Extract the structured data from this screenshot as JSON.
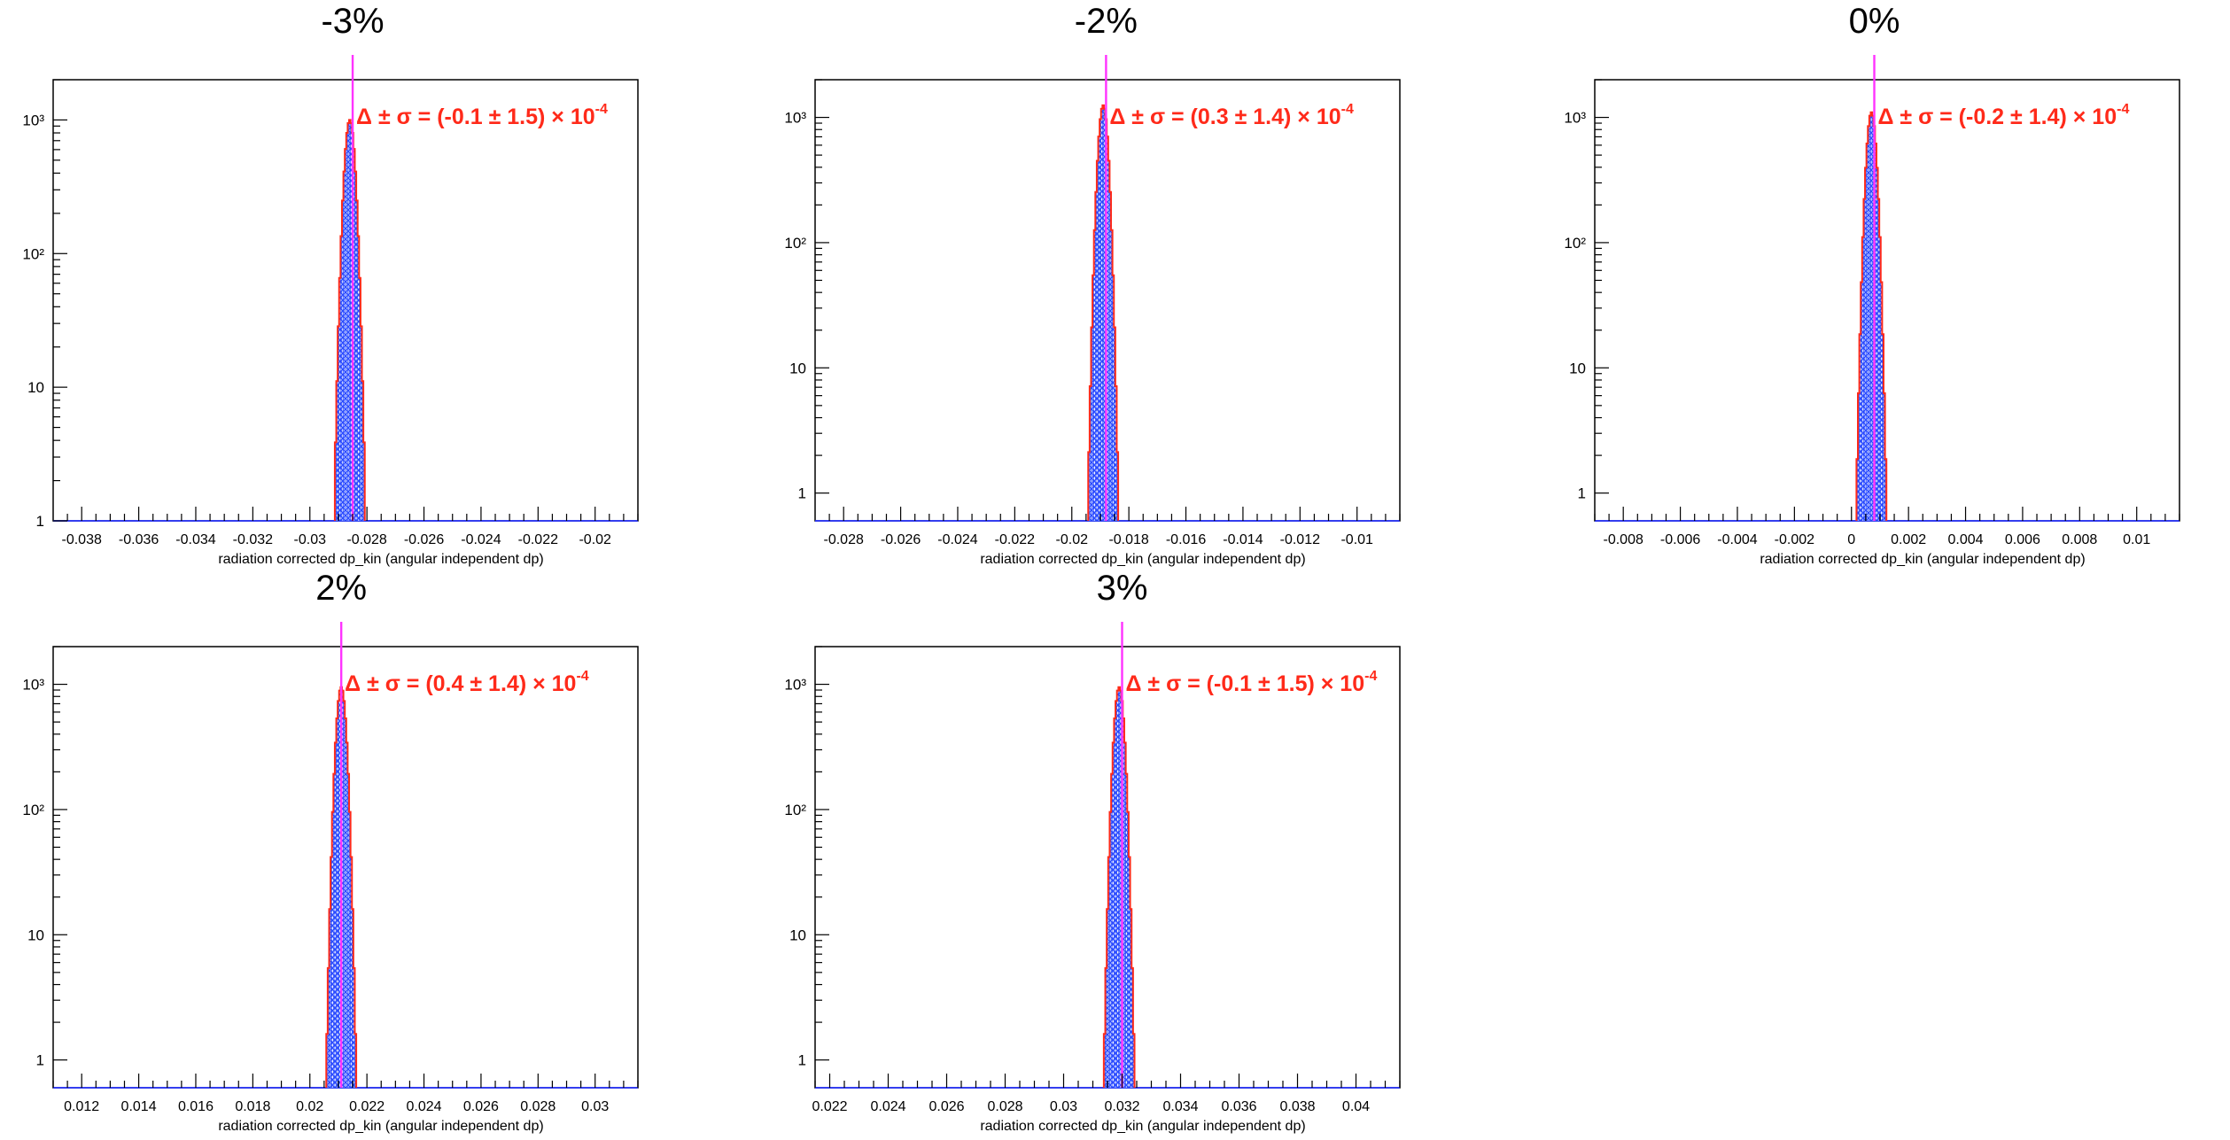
{
  "colors": {
    "frame": "#000000",
    "axis_blue": "#2a34ff",
    "hatch_blue": "#2a4bff",
    "fit_red": "#ff2a1a",
    "marker_magenta": "#ff33ff",
    "annotation_red": "#ff2a1a"
  },
  "chart_data": [
    {
      "type": "histogram",
      "panel_title": "-3%",
      "xlabel": "radiation corrected dp_kin (angular independent dp)",
      "xlim": [
        -0.039,
        -0.0185
      ],
      "ylog": true,
      "ylim": [
        1,
        2000
      ],
      "x_ticks": [
        "-0.038",
        "-0.036",
        "-0.034",
        "-0.032",
        "-0.03",
        "-0.028",
        "-0.026",
        "-0.024",
        "-0.022",
        "-0.02"
      ],
      "x_tick_values": [
        -0.038,
        -0.036,
        -0.034,
        -0.032,
        -0.03,
        -0.028,
        -0.026,
        -0.024,
        -0.022,
        -0.02
      ],
      "y_ticks": [
        "1",
        "10",
        "10²",
        "10³"
      ],
      "y_tick_values": [
        1,
        10,
        100,
        1000
      ],
      "peak_center": -0.0286,
      "peak_height": 1000,
      "peak_sigma": 0.00015,
      "marker_x": -0.0285,
      "annotation_parts": [
        "Δ ± σ = (",
        "-0.1",
        " ± ",
        "1.5",
        ") × 10",
        "-4"
      ]
    },
    {
      "type": "histogram",
      "panel_title": "-2%",
      "xlabel": "radiation corrected dp_kin (angular independent dp)",
      "xlim": [
        -0.029,
        -0.0085
      ],
      "ylog": true,
      "ylim": [
        0.6,
        2000
      ],
      "x_ticks": [
        "-0.028",
        "-0.026",
        "-0.024",
        "-0.022",
        "-0.02",
        "-0.018",
        "-0.016",
        "-0.014",
        "-0.012",
        "-0.01"
      ],
      "x_tick_values": [
        -0.028,
        -0.026,
        -0.024,
        -0.022,
        -0.02,
        -0.018,
        -0.016,
        -0.014,
        -0.012,
        -0.01
      ],
      "y_ticks": [
        "1",
        "10",
        "10²",
        "10³"
      ],
      "y_tick_values": [
        1,
        10,
        100,
        1000
      ],
      "peak_center": -0.0189,
      "peak_height": 1250,
      "peak_sigma": 0.00014,
      "marker_x": -0.0188,
      "annotation_parts": [
        "Δ ± σ = (",
        "0.3",
        " ± ",
        "1.4",
        ") × 10",
        "-4"
      ]
    },
    {
      "type": "histogram",
      "panel_title": "0%",
      "xlabel": "radiation corrected dp_kin (angular independent dp)",
      "xlim": [
        -0.009,
        0.0115
      ],
      "ylog": true,
      "ylim": [
        0.6,
        2000
      ],
      "x_ticks": [
        "-0.008",
        "-0.006",
        "-0.004",
        "-0.002",
        "0",
        "0.002",
        "0.004",
        "0.006",
        "0.008",
        "0.01"
      ],
      "x_tick_values": [
        -0.008,
        -0.006,
        -0.004,
        -0.002,
        0,
        0.002,
        0.004,
        0.006,
        0.008,
        0.01
      ],
      "y_ticks": [
        "1",
        "10",
        "10²",
        "10³"
      ],
      "y_tick_values": [
        1,
        10,
        100,
        1000
      ],
      "peak_center": 0.0007,
      "peak_height": 1100,
      "peak_sigma": 0.00014,
      "marker_x": 0.0008,
      "annotation_parts": [
        "Δ ± σ = (",
        "-0.2",
        " ± ",
        "1.4",
        ") × 10",
        "-4"
      ]
    },
    {
      "type": "histogram",
      "panel_title": "2%",
      "xlabel": "radiation corrected dp_kin (angular independent dp)",
      "xlim": [
        0.011,
        0.0315
      ],
      "ylog": true,
      "ylim": [
        0.6,
        2000
      ],
      "x_ticks": [
        "0.012",
        "0.014",
        "0.016",
        "0.018",
        "0.02",
        "0.022",
        "0.024",
        "0.026",
        "0.028",
        "0.03"
      ],
      "x_tick_values": [
        0.012,
        0.014,
        0.016,
        0.018,
        0.02,
        0.022,
        0.024,
        0.026,
        0.028,
        0.03
      ],
      "y_ticks": [
        "1",
        "10",
        "10²",
        "10³"
      ],
      "y_tick_values": [
        1,
        10,
        100,
        1000
      ],
      "peak_center": 0.0211,
      "peak_height": 950,
      "peak_sigma": 0.00014,
      "marker_x": 0.0211,
      "annotation_parts": [
        "Δ ± σ = (",
        "0.4",
        " ± ",
        "1.4",
        ") × 10",
        "-4"
      ]
    },
    {
      "type": "histogram",
      "panel_title": "3%",
      "xlabel": "radiation corrected dp_kin (angular independent dp)",
      "xlim": [
        0.0215,
        0.0415
      ],
      "ylog": true,
      "ylim": [
        0.6,
        2000
      ],
      "x_ticks": [
        "0.022",
        "0.024",
        "0.026",
        "0.028",
        "0.03",
        "0.032",
        "0.034",
        "0.036",
        "0.038",
        "0.04"
      ],
      "x_tick_values": [
        0.022,
        0.024,
        0.026,
        0.028,
        0.03,
        0.032,
        0.034,
        0.036,
        0.038,
        0.04
      ],
      "y_ticks": [
        "1",
        "10",
        "10²",
        "10³"
      ],
      "y_tick_values": [
        1,
        10,
        100,
        1000
      ],
      "peak_center": 0.0319,
      "peak_height": 950,
      "peak_sigma": 0.00014,
      "marker_x": 0.032,
      "annotation_parts": [
        "Δ ± σ = (",
        "-0.1",
        " ± ",
        "1.5",
        ") × 10",
        "-4"
      ]
    }
  ]
}
